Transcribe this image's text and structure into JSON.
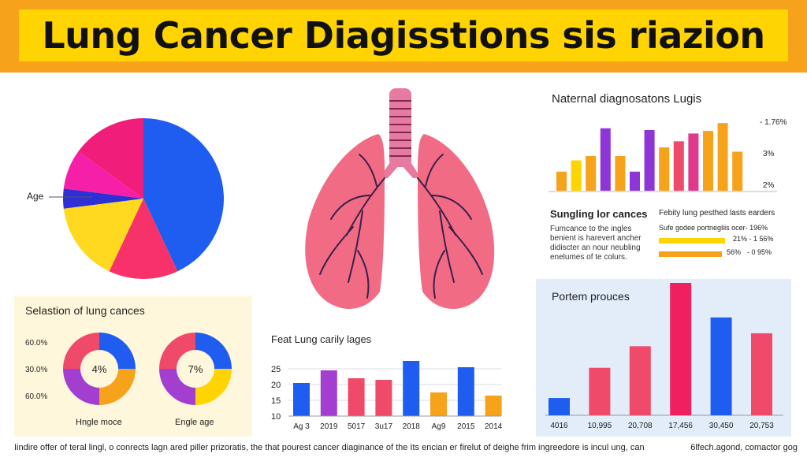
{
  "banner": {
    "title": "Lung Cancer Diagisstions sis riazion"
  },
  "pie": {
    "label": "Age"
  },
  "lungs": {
    "color": "#f16b85",
    "vein_color": "#3b1f4a",
    "trachea_color": "#e87aa0"
  },
  "national": {
    "title": "Naternal diagnosatons Lugis",
    "right_labels": [
      "- 1.76%",
      "3%",
      "2%"
    ]
  },
  "sungling": {
    "title": "Sungling lor cances",
    "body": [
      "Fumcance to the ingles",
      "benient is harevert ancher",
      "didiscter an nour neubling",
      "enelumes of te colurs."
    ]
  },
  "febity": {
    "title": "Febity lung pesthed lasts earders",
    "row1": {
      "left": "Sufe godee portnegliis ocer- 196%",
      "right": "21% - 1 56%"
    },
    "row2": {
      "left": "56%",
      "right": "- 0 95%"
    }
  },
  "selastion": {
    "title": "Selastion of lung cances",
    "y_labels": [
      "60.0%",
      "30.0%",
      "60.0%"
    ],
    "donut1": {
      "center": "4%",
      "caption": "Hngle moce"
    },
    "donut2": {
      "center": "7%",
      "caption": "Engle age"
    }
  },
  "feat": {
    "title": "Feat Lung carily lages",
    "y_ticks": [
      "25",
      "20",
      "15",
      "10"
    ],
    "x_labels": [
      "Ag 3",
      "2019",
      "5017",
      "3u17",
      "2018",
      "Ag9",
      "2015",
      "2014"
    ]
  },
  "portem": {
    "title": "Portem prouces",
    "x_labels": [
      "4016",
      "10,995",
      "20,708",
      "17,456",
      "30,450",
      "20,753"
    ]
  },
  "footer": {
    "left": "Iindire offer of teral lingl, o conrects lagn ared piller prizoratis, the that pourest cancer diaginance of the Its encian er firelut of deighe frim ingreedore is incul ung, cancer oley cance.",
    "right": "6lfech.agond, comactor gog"
  },
  "chart_data": [
    {
      "type": "pie",
      "title": "",
      "label": "Age",
      "slices": [
        {
          "value": 43,
          "color": "#1f5df0"
        },
        {
          "value": 14,
          "color": "#f7326a"
        },
        {
          "value": 16,
          "color": "#ffd91f"
        },
        {
          "value": 4,
          "color": "#2f2fd6"
        },
        {
          "value": 8,
          "color": "#f51fa8"
        },
        {
          "value": 15,
          "color": "#f01d7a"
        }
      ]
    },
    {
      "type": "bar",
      "title": "Naternal diagnosatons Lugis",
      "values": [
        2.2,
        3.5,
        4.0,
        7.2,
        4.0,
        2.2,
        7.0,
        5.0,
        5.7,
        6.6,
        6.9,
        7.8,
        4.5
      ],
      "colors": [
        "#f7a21b",
        "#ffd400",
        "#f7a21b",
        "#8e35d8",
        "#f7a21b",
        "#8e35d8",
        "#8e35d8",
        "#f7a21b",
        "#f04a6a",
        "#e0388a",
        "#f7a21b",
        "#f7a21b",
        "#f7a21b"
      ],
      "ylim": [
        0,
        8
      ]
    },
    {
      "type": "bar",
      "title": "Febity lung pesthed lasts earders",
      "values": [
        84,
        80
      ],
      "colors": [
        "#ffd400",
        "#f7a21b"
      ],
      "ylim": [
        0,
        100
      ]
    },
    {
      "type": "pie",
      "title": "Selastion of lung cances",
      "donuts": [
        {
          "center": "4%",
          "caption": "Hngle moce",
          "slices": [
            {
              "value": 25,
              "color": "#1f5df0"
            },
            {
              "value": 25,
              "color": "#f7a21b"
            },
            {
              "value": 25,
              "color": "#a23fd0"
            },
            {
              "value": 25,
              "color": "#f04a6a"
            }
          ]
        },
        {
          "center": "7%",
          "caption": "Engle age",
          "slices": [
            {
              "value": 25,
              "color": "#1f5df0"
            },
            {
              "value": 25,
              "color": "#ffd400"
            },
            {
              "value": 25,
              "color": "#a23fd0"
            },
            {
              "value": 25,
              "color": "#f04a6a"
            }
          ]
        }
      ]
    },
    {
      "type": "bar",
      "title": "Feat Lung carily lages",
      "categories": [
        "Ag 3",
        "2019",
        "5017",
        "3u17",
        "2018",
        "Ag9",
        "2015",
        "2014"
      ],
      "values": [
        20.5,
        24.5,
        22,
        21.5,
        27.5,
        17.5,
        25.5,
        16.5
      ],
      "colors": [
        "#1f5df0",
        "#a23fd0",
        "#f04a6a",
        "#f04a6a",
        "#1f5df0",
        "#f7a21b",
        "#1f5df0",
        "#f7a21b"
      ],
      "ylim": [
        10,
        28
      ],
      "y_ticks": [
        25,
        20,
        15,
        10
      ]
    },
    {
      "type": "bar",
      "title": "Portem prouces",
      "categories": [
        "4016",
        "10,995",
        "20,708",
        "17,456",
        "30,450",
        "20,753"
      ],
      "values": [
        12,
        33,
        48,
        92,
        68,
        57
      ],
      "colors": [
        "#1f5df0",
        "#f04a6a",
        "#f04a6a",
        "#f02060",
        "#1f5df0",
        "#f04a6a"
      ],
      "ylim": [
        0,
        92
      ]
    }
  ]
}
